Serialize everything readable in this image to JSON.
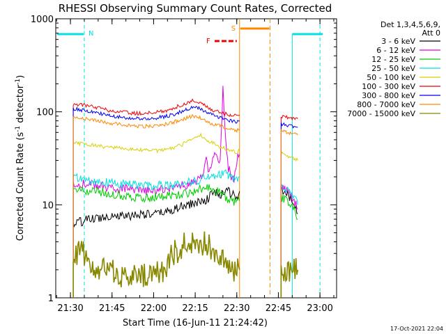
{
  "chart_data": {
    "type": "line",
    "title": "RHESSI Observing Summary Count Rates, Corrected",
    "xlabel": "Start Time (16-Jun-11 21:24:42)",
    "ylabel": "Corrected Count Rate (s",
    "ylabel_sup1": "-1",
    "ylabel_mid": " detector",
    "ylabel_sup2": "-1",
    "ylabel_end": ")",
    "yscale": "log",
    "ylim": [
      1,
      1000
    ],
    "y_ticks": [
      {
        "value": 1,
        "label": "1"
      },
      {
        "value": 10,
        "label": "10"
      },
      {
        "value": 100,
        "label": "100"
      },
      {
        "value": 1000,
        "label": "1000"
      }
    ],
    "xlim": [
      "21:24:42",
      "23:06:00"
    ],
    "x_ticks": [
      "21:30",
      "21:45",
      "22:00",
      "22:15",
      "22:30",
      "22:45",
      "23:00"
    ],
    "legend": {
      "placement": "right",
      "header1": "Det 1,3,4,5,6,9,",
      "header2": "Att 0",
      "entries": [
        {
          "label": "3 - 6 keV",
          "color": "#000000"
        },
        {
          "label": "6 - 12 keV",
          "color": "#e000e0"
        },
        {
          "label": "12 - 25 keV",
          "color": "#00cc00"
        },
        {
          "label": "25 - 50 keV",
          "color": "#00e0e0"
        },
        {
          "label": "50 - 100 keV",
          "color": "#d8d000"
        },
        {
          "label": "100 - 300 keV",
          "color": "#ee0000"
        },
        {
          "label": "300 - 800 keV",
          "color": "#0000ee"
        },
        {
          "label": "800 - 7000 keV",
          "color": "#ff8800"
        },
        {
          "label": "7000 - 15000 keV",
          "color": "#888800"
        }
      ]
    },
    "annotations": {
      "night_label": "N",
      "saa_label": "S",
      "flare_label": "F",
      "night_times": [
        "21:35",
        "23:00"
      ],
      "saa_times": [
        "22:31",
        "22:42"
      ],
      "flare_time_range": [
        "22:22",
        "22:31"
      ]
    },
    "date_stamp": "17-Oct-2021 22:04",
    "series": [
      {
        "name": "3 - 6 keV",
        "color": "#000000",
        "segments": [
          {
            "x": [
              "21:31",
              "21:35",
              "21:40",
              "21:45",
              "21:50",
              "21:55",
              "22:00",
              "22:05",
              "22:10",
              "22:15",
              "22:18",
              "22:20",
              "22:22",
              "22:24",
              "22:26",
              "22:28",
              "22:30",
              "22:31"
            ],
            "y": [
              6.2,
              6.8,
              7.2,
              7.8,
              7.5,
              8.0,
              7.8,
              8.5,
              9.5,
              10.5,
              11,
              12,
              14,
              12,
              15,
              13,
              12,
              14
            ]
          },
          {
            "x": [
              "22:46",
              "22:48",
              "22:50",
              "22:52"
            ],
            "y": [
              14,
              13,
              11,
              8
            ]
          }
        ]
      },
      {
        "name": "6 - 12 keV",
        "color": "#e000e0",
        "segments": [
          {
            "x": [
              "21:31",
              "21:35",
              "21:40",
              "21:45",
              "21:50",
              "21:55",
              "22:00",
              "22:05",
              "22:10",
              "22:14",
              "22:17",
              "22:19",
              "22:20",
              "22:22",
              "22:24",
              "22:25",
              "22:26",
              "22:27",
              "22:28",
              "22:29",
              "22:30",
              "22:31"
            ],
            "y": [
              17,
              17,
              16,
              15,
              15,
              14,
              14,
              15,
              16,
              17,
              19,
              30,
              22,
              35,
              28,
              180,
              50,
              25,
              20,
              18,
              30,
              35
            ]
          },
          {
            "x": [
              "22:46",
              "22:48",
              "22:50",
              "22:52"
            ],
            "y": [
              15,
              14,
              12,
              9
            ]
          }
        ]
      },
      {
        "name": "12 - 25 keV",
        "color": "#00cc00",
        "segments": [
          {
            "x": [
              "21:31",
              "21:35",
              "21:40",
              "21:45",
              "21:50",
              "21:55",
              "22:00",
              "22:05",
              "22:10",
              "22:15",
              "22:20",
              "22:23",
              "22:26",
              "22:28",
              "22:30",
              "22:31"
            ],
            "y": [
              15,
              14,
              14,
              13,
              12.5,
              12,
              12,
              12.5,
              13,
              14,
              16,
              14,
              12,
              11,
              10.5,
              11
            ]
          },
          {
            "x": [
              "22:46",
              "22:48",
              "22:50",
              "22:52"
            ],
            "y": [
              12,
              11,
              10,
              7
            ]
          }
        ]
      },
      {
        "name": "25 - 50 keV",
        "color": "#00e0e0",
        "segments": [
          {
            "x": [
              "21:31",
              "21:35",
              "21:40",
              "21:45",
              "21:50",
              "21:55",
              "22:00",
              "22:05",
              "22:10",
              "22:15",
              "22:20",
              "22:25",
              "22:28",
              "22:30",
              "22:31"
            ],
            "y": [
              20,
              19,
              18,
              17,
              16.5,
              16,
              16,
              16.5,
              17,
              18,
              20,
              22,
              20,
              19,
              20
            ]
          },
          {
            "x": [
              "22:46",
              "22:48",
              "22:50",
              "22:52"
            ],
            "y": [
              16,
              14,
              13,
              10
            ]
          }
        ]
      },
      {
        "name": "50 - 100 keV",
        "color": "#d8d000",
        "segments": [
          {
            "x": [
              "21:31",
              "21:35",
              "21:40",
              "21:45",
              "21:50",
              "21:55",
              "22:00",
              "22:05",
              "22:10",
              "22:14",
              "22:17",
              "22:20",
              "22:24",
              "22:28",
              "22:30",
              "22:31"
            ],
            "y": [
              46,
              45,
              43,
              41,
              40,
              39,
              38,
              39,
              44,
              52,
              56,
              48,
              42,
              38,
              37,
              38
            ]
          },
          {
            "x": [
              "22:46",
              "22:48",
              "22:50",
              "22:52"
            ],
            "y": [
              36,
              34,
              32,
              30
            ]
          }
        ]
      },
      {
        "name": "100 - 300 keV",
        "color": "#ee0000",
        "segments": [
          {
            "x": [
              "21:31",
              "21:35",
              "21:40",
              "21:45",
              "21:50",
              "21:55",
              "22:00",
              "22:05",
              "22:10",
              "22:14",
              "22:17",
              "22:20",
              "22:24",
              "22:28",
              "22:30",
              "22:31"
            ],
            "y": [
              122,
              118,
              110,
              102,
              98,
              96,
              98,
              104,
              118,
              132,
              125,
              108,
              98,
              92,
              90,
              92
            ]
          },
          {
            "x": [
              "22:46",
              "22:48",
              "22:50",
              "22:52"
            ],
            "y": [
              90,
              88,
              86,
              84
            ]
          }
        ]
      },
      {
        "name": "300 - 800 keV",
        "color": "#0000ee",
        "segments": [
          {
            "x": [
              "21:31",
              "21:35",
              "21:40",
              "21:45",
              "21:50",
              "21:55",
              "22:00",
              "22:05",
              "22:10",
              "22:14",
              "22:17",
              "22:20",
              "22:24",
              "22:28",
              "22:30",
              "22:31"
            ],
            "y": [
              108,
              103,
              97,
              90,
              86,
              84,
              85,
              90,
              100,
              112,
              108,
              95,
              86,
              80,
              78,
              80
            ]
          },
          {
            "x": [
              "22:46",
              "22:48",
              "22:50",
              "22:52"
            ],
            "y": [
              74,
              72,
              70,
              68
            ]
          }
        ]
      },
      {
        "name": "800 - 7000 keV",
        "color": "#ff8800",
        "segments": [
          {
            "x": [
              "21:31",
              "21:35",
              "21:40",
              "21:45",
              "21:50",
              "21:55",
              "22:00",
              "22:05",
              "22:10",
              "22:14",
              "22:17",
              "22:20",
              "22:24",
              "22:28",
              "22:30",
              "22:31"
            ],
            "y": [
              90,
              85,
              80,
              75,
              72,
              70,
              70,
              74,
              82,
              90,
              86,
              76,
              70,
              65,
              63,
              65
            ]
          },
          {
            "x": [
              "22:46",
              "22:48",
              "22:50",
              "22:52"
            ],
            "y": [
              62,
              60,
              58,
              56
            ]
          }
        ]
      },
      {
        "name": "7000 - 15000 keV",
        "color": "#888800",
        "segments": [
          {
            "x": [
              "21:31",
              "21:35",
              "21:37",
              "21:40",
              "21:45",
              "21:50",
              "21:55",
              "22:00",
              "22:04",
              "22:07",
              "22:10",
              "22:13",
              "22:17",
              "22:20",
              "22:23",
              "22:26",
              "22:29",
              "22:31"
            ],
            "y": [
              3,
              3,
              2,
              2,
              2,
              1.6,
              1.7,
              1.8,
              2,
              3,
              3.5,
              4,
              4,
              3.5,
              3,
              2.5,
              2,
              2
            ]
          },
          {
            "x": [
              "22:46",
              "22:48",
              "22:50",
              "22:52"
            ],
            "y": [
              2,
              2,
              2,
              2
            ]
          }
        ]
      }
    ]
  }
}
